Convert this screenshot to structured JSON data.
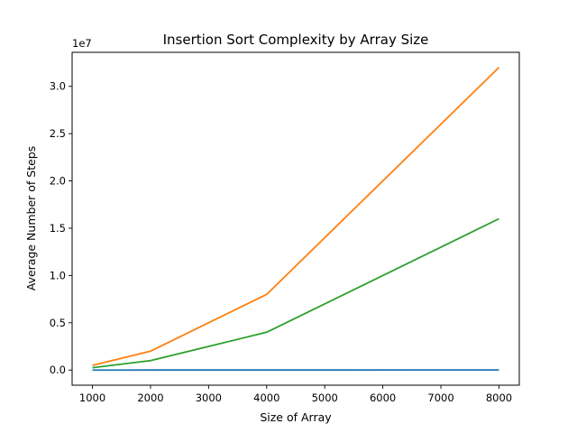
{
  "chart_data": {
    "type": "line",
    "title": "Insertion Sort Complexity by Array Size",
    "xlabel": "Size of Array",
    "ylabel": "Average Number of Steps",
    "y_offset_label": "1e7",
    "y_scale": 10000000,
    "xlim": [
      650,
      8350
    ],
    "ylim": [
      -1600000,
      33600000
    ],
    "x_ticks": [
      1000,
      2000,
      3000,
      4000,
      5000,
      6000,
      7000,
      8000
    ],
    "x_tick_labels": [
      "1000",
      "2000",
      "3000",
      "4000",
      "5000",
      "6000",
      "7000",
      "8000"
    ],
    "y_ticks": [
      0,
      5000000,
      10000000,
      15000000,
      20000000,
      25000000,
      30000000
    ],
    "y_tick_labels": [
      "0.0",
      "0.5",
      "1.0",
      "1.5",
      "2.0",
      "2.5",
      "3.0"
    ],
    "grid": false,
    "legend": "none",
    "x": [
      1000,
      2000,
      4000,
      8000
    ],
    "series": [
      {
        "color": "#1f77b4",
        "values": [
          1000,
          2000,
          4000,
          8000
        ]
      },
      {
        "color": "#ff7f0e",
        "values": [
          500000,
          2000000,
          8000000,
          32000000
        ]
      },
      {
        "color": "#2ca02c",
        "values": [
          250000,
          1000000,
          4000000,
          16000000
        ]
      }
    ]
  }
}
